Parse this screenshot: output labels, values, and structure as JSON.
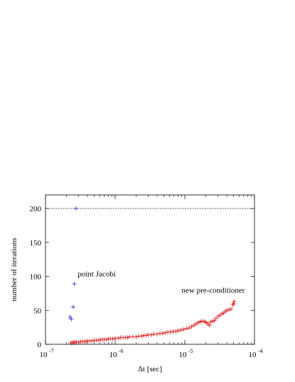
{
  "chart_data": {
    "type": "scatter",
    "title": "",
    "xlabel": "Δt [sec]",
    "ylabel": "number of iterations",
    "xscale": "log",
    "xlim": [
      1e-07,
      0.0001
    ],
    "ylim": [
      0,
      220
    ],
    "x_ticks": [
      {
        "value": 1e-07,
        "base": "10",
        "exp": "-7"
      },
      {
        "value": 1e-06,
        "base": "10",
        "exp": "-6"
      },
      {
        "value": 1e-05,
        "base": "10",
        "exp": "-5"
      },
      {
        "value": 0.0001,
        "base": "10",
        "exp": "-4"
      }
    ],
    "y_ticks": [
      "0",
      "50",
      "100",
      "150",
      "200"
    ],
    "grid": false,
    "reference_line": {
      "y": 200,
      "style": "dashed"
    },
    "series": [
      {
        "name": "point Jacobi",
        "color": "#3333cc",
        "marker": "plus",
        "points": [
          {
            "x": 2.25e-07,
            "y": 40
          },
          {
            "x": 2.35e-07,
            "y": 37
          },
          {
            "x": 2.5e-07,
            "y": 55
          },
          {
            "x": 2.6e-07,
            "y": 89
          },
          {
            "x": 2.75e-07,
            "y": 200
          }
        ]
      },
      {
        "name": "new pre-conditioner",
        "color": "#e02020",
        "marker": "plus",
        "points": [
          {
            "x": 2.3e-07,
            "y": 2
          },
          {
            "x": 2.4e-07,
            "y": 2
          },
          {
            "x": 2.5e-07,
            "y": 3
          },
          {
            "x": 2.6e-07,
            "y": 3
          },
          {
            "x": 2.7e-07,
            "y": 3
          },
          {
            "x": 2.8e-07,
            "y": 3
          },
          {
            "x": 3e-07,
            "y": 3
          },
          {
            "x": 3.2e-07,
            "y": 4
          },
          {
            "x": 3.4e-07,
            "y": 4
          },
          {
            "x": 3.6e-07,
            "y": 4
          },
          {
            "x": 3.8e-07,
            "y": 4
          },
          {
            "x": 4e-07,
            "y": 5
          },
          {
            "x": 4.3e-07,
            "y": 5
          },
          {
            "x": 4.6e-07,
            "y": 5
          },
          {
            "x": 5e-07,
            "y": 6
          },
          {
            "x": 5.4e-07,
            "y": 6
          },
          {
            "x": 5.8e-07,
            "y": 6
          },
          {
            "x": 6.2e-07,
            "y": 7
          },
          {
            "x": 6.6e-07,
            "y": 7
          },
          {
            "x": 7e-07,
            "y": 7
          },
          {
            "x": 7.5e-07,
            "y": 7
          },
          {
            "x": 8e-07,
            "y": 8
          },
          {
            "x": 8.6e-07,
            "y": 8
          },
          {
            "x": 9.2e-07,
            "y": 8
          },
          {
            "x": 1e-06,
            "y": 9
          },
          {
            "x": 1.1e-06,
            "y": 9
          },
          {
            "x": 1.2e-06,
            "y": 10
          },
          {
            "x": 1.3e-06,
            "y": 10
          },
          {
            "x": 1.4e-06,
            "y": 10
          },
          {
            "x": 1.5e-06,
            "y": 10
          },
          {
            "x": 1.6e-06,
            "y": 11
          },
          {
            "x": 1.8e-06,
            "y": 11
          },
          {
            "x": 2e-06,
            "y": 11
          },
          {
            "x": 2.2e-06,
            "y": 12
          },
          {
            "x": 2.4e-06,
            "y": 12
          },
          {
            "x": 2.6e-06,
            "y": 13
          },
          {
            "x": 2.8e-06,
            "y": 13
          },
          {
            "x": 3e-06,
            "y": 14
          },
          {
            "x": 3.3e-06,
            "y": 14
          },
          {
            "x": 3.6e-06,
            "y": 15
          },
          {
            "x": 4e-06,
            "y": 15
          },
          {
            "x": 4.4e-06,
            "y": 16
          },
          {
            "x": 4.8e-06,
            "y": 16
          },
          {
            "x": 5.2e-06,
            "y": 17
          },
          {
            "x": 5.7e-06,
            "y": 18
          },
          {
            "x": 6.2e-06,
            "y": 18
          },
          {
            "x": 6.8e-06,
            "y": 19
          },
          {
            "x": 7.4e-06,
            "y": 19
          },
          {
            "x": 8e-06,
            "y": 20
          },
          {
            "x": 8.8e-06,
            "y": 21
          },
          {
            "x": 9.6e-06,
            "y": 22
          },
          {
            "x": 1.05e-05,
            "y": 23
          },
          {
            "x": 1.15e-05,
            "y": 24
          },
          {
            "x": 1.25e-05,
            "y": 26
          },
          {
            "x": 1.35e-05,
            "y": 28
          },
          {
            "x": 1.45e-05,
            "y": 30
          },
          {
            "x": 1.55e-05,
            "y": 32
          },
          {
            "x": 1.65e-05,
            "y": 33
          },
          {
            "x": 1.75e-05,
            "y": 34
          },
          {
            "x": 1.85e-05,
            "y": 34
          },
          {
            "x": 1.95e-05,
            "y": 33
          },
          {
            "x": 2.05e-05,
            "y": 32
          },
          {
            "x": 2.15e-05,
            "y": 30
          },
          {
            "x": 2.25e-05,
            "y": 28
          },
          {
            "x": 2.35e-05,
            "y": 33
          },
          {
            "x": 2.5e-05,
            "y": 34
          },
          {
            "x": 2.65e-05,
            "y": 35
          },
          {
            "x": 2.8e-05,
            "y": 38
          },
          {
            "x": 3e-05,
            "y": 41
          },
          {
            "x": 3.2e-05,
            "y": 43
          },
          {
            "x": 3.4e-05,
            "y": 45
          },
          {
            "x": 3.6e-05,
            "y": 46
          },
          {
            "x": 3.8e-05,
            "y": 48
          },
          {
            "x": 4e-05,
            "y": 50
          },
          {
            "x": 4.3e-05,
            "y": 51
          },
          {
            "x": 4.6e-05,
            "y": 52
          },
          {
            "x": 4.9e-05,
            "y": 58
          },
          {
            "x": 5e-05,
            "y": 60
          },
          {
            "x": 5.1e-05,
            "y": 63
          }
        ]
      }
    ],
    "annotations": [
      {
        "text": "point Jacobi",
        "x": 2.9e-07,
        "y": 100
      },
      {
        "text": "new pre-conditioner",
        "x": 9e-06,
        "y": 76
      }
    ]
  }
}
